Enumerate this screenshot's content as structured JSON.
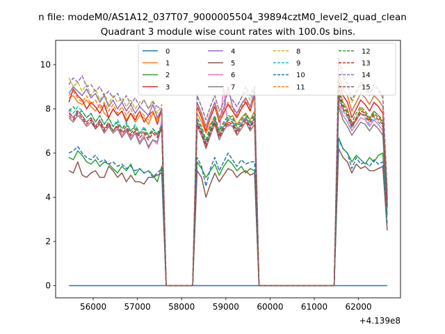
{
  "figure": {
    "suptitle": "n file: modeM0/AS1A12_037T07_9000005504_39894cztM0_level2_quad_clean",
    "offset_label": "+4.139e8"
  },
  "chart_data": {
    "type": "line",
    "title": "Quadrant 3 module wise count rates with 100.0s bins.",
    "xlabel": "",
    "ylabel": "",
    "xlim": [
      55150,
      62950
    ],
    "ylim": [
      -0.55,
      11.1
    ],
    "x_ticks": [
      56000,
      57000,
      58000,
      59000,
      60000,
      61000,
      62000
    ],
    "y_ticks": [
      0,
      2,
      4,
      6,
      8,
      10
    ],
    "grid": false,
    "legend": {
      "placement": "top-center",
      "columns": 4
    },
    "x_offset_label": "+4.139e8",
    "segments": [
      {
        "start": 55450,
        "step": 100,
        "count": 22
      },
      {
        "start": 58350,
        "step": 100,
        "count": 14
      },
      {
        "start": 61550,
        "step": 100,
        "count": 12
      }
    ],
    "series": [
      {
        "name": "0",
        "color": "#1f77b4",
        "dash": "solid",
        "seg1": [
          0,
          0,
          0,
          0,
          0,
          0,
          0,
          0,
          0,
          0,
          0,
          0,
          0,
          0,
          0,
          0,
          0,
          0,
          0,
          0,
          0,
          0
        ],
        "seg2": [
          0,
          0,
          0,
          0,
          0,
          0,
          0,
          0,
          0,
          0,
          0,
          0,
          0,
          0
        ],
        "seg3": [
          0,
          0,
          0,
          0,
          0,
          0,
          0,
          0,
          0,
          0,
          0,
          0
        ]
      },
      {
        "name": "1",
        "color": "#ff7f0e",
        "dash": "solid",
        "seg1": [
          8.5,
          8.6,
          8.3,
          8.2,
          8.4,
          8.1,
          7.9,
          8.2,
          7.8,
          7.6,
          8.0,
          7.7,
          7.9,
          7.5,
          7.8,
          7.4,
          7.7,
          7.6,
          7.3,
          7.8,
          7.5,
          7.9
        ],
        "seg2": [
          7.8,
          7.4,
          6.9,
          7.3,
          7.6,
          6.8,
          7.2,
          7.5,
          7.7,
          7.3,
          7.6,
          7.8,
          7.5,
          7.9
        ],
        "seg3": [
          9.0,
          8.3,
          8.0,
          7.2,
          7.6,
          8.0,
          7.8,
          7.5,
          7.9,
          7.7,
          7.4,
          3.8
        ]
      },
      {
        "name": "2",
        "color": "#2ca02c",
        "dash": "solid",
        "seg1": [
          5.8,
          5.7,
          6.1,
          5.9,
          5.6,
          5.5,
          5.7,
          5.4,
          5.6,
          5.5,
          5.3,
          5.1,
          5.4,
          5.2,
          5.5,
          5.0,
          5.3,
          5.1,
          5.2,
          5.0,
          4.7,
          5.4
        ],
        "seg2": [
          5.6,
          5.3,
          4.9,
          5.2,
          5.5,
          5.0,
          5.4,
          5.7,
          5.5,
          5.2,
          5.4,
          5.1,
          5.3,
          5.2
        ],
        "seg3": [
          6.7,
          6.2,
          6.0,
          5.6,
          5.9,
          5.7,
          5.5,
          5.8,
          5.6,
          5.9,
          6.0,
          3.2
        ]
      },
      {
        "name": "3",
        "color": "#d62728",
        "dash": "solid",
        "seg1": [
          8.3,
          8.9,
          8.6,
          8.4,
          8.0,
          8.3,
          8.1,
          7.8,
          8.2,
          7.6,
          8.0,
          7.7,
          7.9,
          7.4,
          7.8,
          7.5,
          7.9,
          7.4,
          7.7,
          7.9,
          7.3,
          8.0
        ],
        "seg2": [
          8.1,
          7.6,
          7.0,
          7.6,
          8.1,
          7.4,
          7.8,
          8.2,
          7.9,
          7.6,
          8.0,
          8.3,
          7.9,
          8.6
        ],
        "seg3": [
          9.3,
          8.6,
          8.3,
          7.6,
          8.0,
          8.4,
          8.2,
          7.9,
          8.3,
          8.1,
          7.8,
          4.0
        ]
      },
      {
        "name": "4",
        "color": "#9467bd",
        "dash": "solid",
        "seg1": [
          8.7,
          9.0,
          8.8,
          8.6,
          8.9,
          8.5,
          8.7,
          8.3,
          8.6,
          8.1,
          8.4,
          8.0,
          8.3,
          7.9,
          8.2,
          7.8,
          8.1,
          7.9,
          7.7,
          8.2,
          7.6,
          8.0
        ],
        "seg2": [
          8.3,
          7.8,
          7.2,
          7.8,
          8.3,
          7.6,
          8.0,
          9.0,
          8.1,
          7.8,
          8.2,
          8.5,
          8.1,
          8.8
        ],
        "seg3": [
          9.6,
          8.9,
          8.6,
          7.9,
          8.3,
          8.7,
          8.5,
          8.2,
          8.6,
          8.4,
          8.1,
          4.1
        ]
      },
      {
        "name": "5",
        "color": "#8c564b",
        "dash": "solid",
        "seg1": [
          5.2,
          5.1,
          5.6,
          5.0,
          4.9,
          5.1,
          5.2,
          4.9,
          4.9,
          5.4,
          5.2,
          4.9,
          5.1,
          4.7,
          5.0,
          4.7,
          4.7,
          4.6,
          4.9,
          4.9,
          5.0,
          5.1
        ],
        "seg2": [
          5.2,
          4.9,
          4.0,
          4.6,
          5.1,
          4.7,
          5.0,
          5.3,
          5.2,
          4.9,
          5.1,
          5.2,
          5.0,
          5.1
        ],
        "seg3": [
          6.2,
          5.8,
          5.6,
          5.1,
          5.5,
          5.3,
          5.4,
          5.2,
          5.2,
          5.3,
          5.4,
          2.5
        ]
      },
      {
        "name": "6",
        "color": "#e377c2",
        "dash": "solid",
        "seg1": [
          7.9,
          7.6,
          7.9,
          7.7,
          7.4,
          7.6,
          7.2,
          7.5,
          7.1,
          7.3,
          7.0,
          7.2,
          6.8,
          7.1,
          6.7,
          7.0,
          6.5,
          6.8,
          6.2,
          6.6,
          6.4,
          7.5
        ],
        "seg2": [
          7.4,
          7.0,
          6.4,
          7.0,
          7.5,
          6.8,
          9.0,
          7.2,
          7.4,
          7.0,
          7.3,
          7.6,
          7.2,
          7.6
        ],
        "seg3": [
          8.3,
          7.7,
          7.4,
          7.0,
          7.3,
          7.6,
          7.5,
          7.2,
          7.5,
          7.3,
          7.0,
          3.6
        ]
      },
      {
        "name": "7",
        "color": "#7f7f7f",
        "dash": "solid",
        "seg1": [
          7.6,
          7.4,
          7.7,
          7.5,
          7.2,
          7.4,
          7.1,
          7.3,
          6.9,
          7.2,
          6.9,
          7.1,
          6.7,
          7.0,
          6.6,
          6.9,
          6.4,
          6.7,
          6.3,
          6.6,
          6.5,
          7.2
        ],
        "seg2": [
          7.2,
          6.8,
          6.2,
          6.8,
          7.3,
          6.6,
          7.0,
          7.3,
          7.2,
          6.8,
          7.1,
          7.4,
          7.0,
          7.3
        ],
        "seg3": [
          8.1,
          7.5,
          7.2,
          6.8,
          7.1,
          7.4,
          7.3,
          7.0,
          7.3,
          7.1,
          6.8,
          3.5
        ]
      },
      {
        "name": "8",
        "color": "#bcbd22",
        "dash": "dashed",
        "seg1": [
          9.4,
          9.0,
          9.2,
          8.8,
          9.1,
          8.6,
          8.9,
          8.4,
          8.7,
          8.2,
          8.6,
          8.3,
          8.5,
          8.1,
          8.4,
          8.0,
          8.3,
          8.4,
          8.0,
          8.4,
          7.8,
          8.2
        ],
        "seg2": [
          8.6,
          8.1,
          7.5,
          8.1,
          8.6,
          7.9,
          8.3,
          8.7,
          8.4,
          8.1,
          8.5,
          8.8,
          8.4,
          9.0
        ],
        "seg3": [
          10.2,
          9.4,
          9.0,
          8.3,
          8.7,
          9.1,
          8.9,
          8.6,
          9.0,
          8.8,
          8.5,
          4.3
        ]
      },
      {
        "name": "9",
        "color": "#17becf",
        "dash": "dashed",
        "seg1": [
          8.0,
          7.8,
          8.1,
          7.9,
          7.6,
          7.8,
          7.4,
          7.7,
          7.3,
          7.6,
          7.2,
          7.5,
          7.1,
          7.4,
          7.0,
          7.3,
          6.9,
          7.2,
          6.8,
          7.1,
          6.9,
          7.3
        ],
        "seg2": [
          7.5,
          7.1,
          6.5,
          7.1,
          7.6,
          6.9,
          7.3,
          7.6,
          7.5,
          7.1,
          7.4,
          7.7,
          7.3,
          7.7
        ],
        "seg3": [
          8.5,
          7.9,
          7.6,
          7.1,
          7.5,
          7.8,
          7.6,
          7.3,
          7.6,
          7.4,
          7.2,
          3.7
        ]
      },
      {
        "name": "10",
        "color": "#1f77b4",
        "dash": "dashed",
        "seg1": [
          6.0,
          6.1,
          6.3,
          6.0,
          5.8,
          5.7,
          5.9,
          5.6,
          5.7,
          5.5,
          5.6,
          5.4,
          5.5,
          5.3,
          5.4,
          5.2,
          5.3,
          5.1,
          5.2,
          4.9,
          5.1,
          5.3
        ],
        "seg2": [
          5.8,
          5.4,
          4.5,
          5.3,
          5.8,
          5.2,
          5.6,
          6.0,
          5.7,
          5.4,
          5.7,
          5.5,
          5.6,
          5.6
        ],
        "seg3": [
          6.6,
          6.2,
          6.0,
          5.3,
          5.8,
          5.5,
          5.6,
          5.4,
          5.7,
          5.5,
          5.6,
          2.8
        ]
      },
      {
        "name": "11",
        "color": "#ff7f0e",
        "dash": "dashed",
        "seg1": [
          8.6,
          8.8,
          8.5,
          8.3,
          8.6,
          8.2,
          8.4,
          8.0,
          8.3,
          7.9,
          8.2,
          7.8,
          8.1,
          7.7,
          8.0,
          7.6,
          7.9,
          7.7,
          7.5,
          7.9,
          7.4,
          7.8
        ],
        "seg2": [
          8.2,
          7.7,
          7.1,
          7.7,
          8.2,
          7.5,
          7.9,
          8.3,
          8.0,
          7.7,
          8.1,
          8.4,
          8.0,
          8.5
        ],
        "seg3": [
          9.6,
          8.9,
          8.6,
          7.9,
          8.3,
          8.7,
          8.5,
          8.2,
          8.6,
          8.4,
          8.1,
          4.1
        ]
      },
      {
        "name": "12",
        "color": "#2ca02c",
        "dash": "dashed",
        "seg1": [
          7.9,
          8.1,
          7.8,
          7.9,
          7.6,
          7.8,
          7.4,
          7.7,
          7.3,
          7.6,
          7.2,
          7.4,
          7.1,
          7.3,
          7.0,
          7.2,
          6.9,
          7.1,
          6.8,
          7.1,
          6.8,
          7.2
        ],
        "seg2": [
          7.6,
          7.2,
          6.6,
          7.2,
          7.7,
          7.0,
          7.4,
          7.7,
          7.6,
          7.2,
          7.5,
          7.8,
          7.4,
          7.8
        ],
        "seg3": [
          8.9,
          8.2,
          7.9,
          7.4,
          7.8,
          8.1,
          7.9,
          7.6,
          7.9,
          7.7,
          7.5,
          3.9
        ]
      },
      {
        "name": "13",
        "color": "#d62728",
        "dash": "dashed",
        "seg1": [
          7.7,
          7.5,
          7.8,
          7.6,
          7.3,
          7.5,
          7.1,
          7.4,
          7.0,
          7.3,
          7.0,
          7.2,
          6.9,
          7.1,
          6.8,
          7.0,
          6.7,
          6.9,
          6.6,
          6.9,
          6.7,
          7.1
        ],
        "seg2": [
          7.3,
          6.9,
          6.3,
          6.9,
          7.4,
          6.7,
          7.1,
          7.4,
          7.3,
          6.9,
          7.2,
          7.5,
          7.1,
          7.5
        ],
        "seg3": [
          8.6,
          8.0,
          7.7,
          7.2,
          7.5,
          7.8,
          7.7,
          7.4,
          7.7,
          7.5,
          7.3,
          3.6
        ]
      },
      {
        "name": "14",
        "color": "#9467bd",
        "dash": "dashed",
        "seg1": [
          9.1,
          9.4,
          9.2,
          9.5,
          9.0,
          9.1,
          8.8,
          9.0,
          8.6,
          8.8,
          8.5,
          8.7,
          8.3,
          8.6,
          8.2,
          8.5,
          8.1,
          8.4,
          8.0,
          8.3,
          8.1,
          8.0
        ],
        "seg2": [
          8.6,
          8.1,
          7.5,
          8.1,
          8.6,
          7.9,
          8.3,
          8.7,
          8.4,
          8.1,
          8.5,
          9.0,
          8.6,
          9.0
        ],
        "seg3": [
          10.3,
          9.5,
          9.1,
          8.4,
          8.8,
          9.2,
          9.0,
          8.7,
          9.1,
          8.9,
          8.6,
          4.3
        ]
      },
      {
        "name": "15",
        "color": "#8c564b",
        "dash": "dashed",
        "seg1": [
          7.8,
          7.6,
          7.9,
          7.7,
          7.4,
          7.6,
          7.2,
          7.5,
          7.1,
          7.4,
          7.0,
          7.3,
          7.0,
          7.2,
          6.9,
          7.1,
          6.8,
          7.0,
          6.7,
          7.0,
          6.8,
          7.2
        ],
        "seg2": [
          7.4,
          7.0,
          6.4,
          7.0,
          7.5,
          6.8,
          7.2,
          7.5,
          7.4,
          7.0,
          7.3,
          7.6,
          7.2,
          7.6
        ],
        "seg3": [
          8.7,
          8.1,
          7.8,
          7.3,
          7.6,
          7.9,
          7.8,
          7.5,
          7.8,
          7.6,
          7.4,
          3.7
        ]
      }
    ]
  }
}
